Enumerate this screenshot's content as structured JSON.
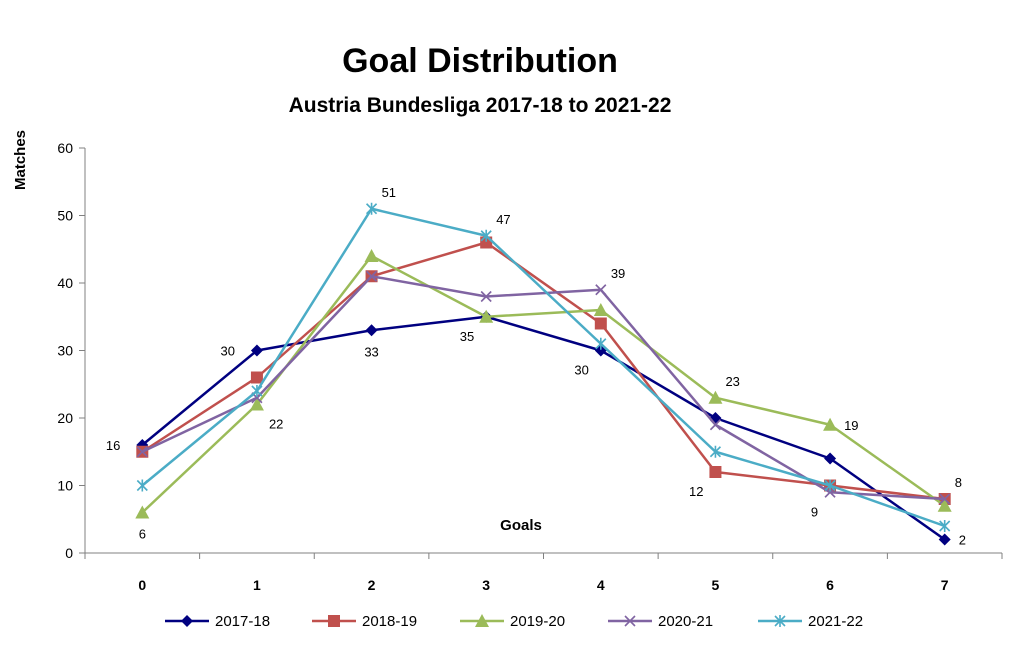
{
  "chart_data": {
    "type": "line",
    "title": "Goal Distribution",
    "subtitle": "Austria Bundesliga 2017-18 to 2021-22",
    "xlabel": "Goals",
    "ylabel": "Matches",
    "categories": [
      "0",
      "1",
      "2",
      "3",
      "4",
      "5",
      "6",
      "7"
    ],
    "ylim": [
      0,
      60
    ],
    "yticks": [
      "0",
      "10",
      "20",
      "30",
      "40",
      "50",
      "60"
    ],
    "grid": false,
    "legend_position": "bottom",
    "series": [
      {
        "name": "2017-18",
        "color": "#000080",
        "marker": "diamond",
        "values": [
          16,
          30,
          33,
          35,
          30,
          20,
          14,
          2
        ]
      },
      {
        "name": "2018-19",
        "color": "#C0504D",
        "marker": "square",
        "values": [
          15,
          26,
          41,
          46,
          34,
          12,
          10,
          8
        ]
      },
      {
        "name": "2019-20",
        "color": "#9BBB59",
        "marker": "triangle",
        "values": [
          6,
          22,
          44,
          35,
          36,
          23,
          19,
          7
        ]
      },
      {
        "name": "2020-21",
        "color": "#8064A2",
        "marker": "x",
        "values": [
          15,
          23,
          41,
          38,
          39,
          19,
          9,
          8
        ]
      },
      {
        "name": "2021-22",
        "color": "#4BACC6",
        "marker": "star",
        "values": [
          10,
          24,
          51,
          47,
          31,
          15,
          10,
          4
        ]
      }
    ],
    "data_labels": [
      {
        "series": 0,
        "index": 0,
        "text": "16",
        "pos": "left"
      },
      {
        "series": 0,
        "index": 1,
        "text": "30",
        "pos": "left"
      },
      {
        "series": 0,
        "index": 2,
        "text": "33",
        "pos": "below"
      },
      {
        "series": 0,
        "index": 3,
        "text": "35",
        "pos": "below-left"
      },
      {
        "series": 0,
        "index": 4,
        "text": "30",
        "pos": "below-left"
      },
      {
        "series": 0,
        "index": 7,
        "text": "2",
        "pos": "right"
      },
      {
        "series": 1,
        "index": 5,
        "text": "12",
        "pos": "below-left"
      },
      {
        "series": 1,
        "index": 7,
        "text": "8",
        "pos": "above-right"
      },
      {
        "series": 2,
        "index": 0,
        "text": "6",
        "pos": "below"
      },
      {
        "series": 2,
        "index": 1,
        "text": "22",
        "pos": "below-right"
      },
      {
        "series": 2,
        "index": 5,
        "text": "23",
        "pos": "above-right"
      },
      {
        "series": 2,
        "index": 6,
        "text": "19",
        "pos": "right"
      },
      {
        "series": 3,
        "index": 4,
        "text": "39",
        "pos": "above-right"
      },
      {
        "series": 3,
        "index": 6,
        "text": "9",
        "pos": "below-left"
      },
      {
        "series": 4,
        "index": 2,
        "text": "51",
        "pos": "above-right"
      },
      {
        "series": 4,
        "index": 3,
        "text": "47",
        "pos": "above-right"
      }
    ]
  }
}
